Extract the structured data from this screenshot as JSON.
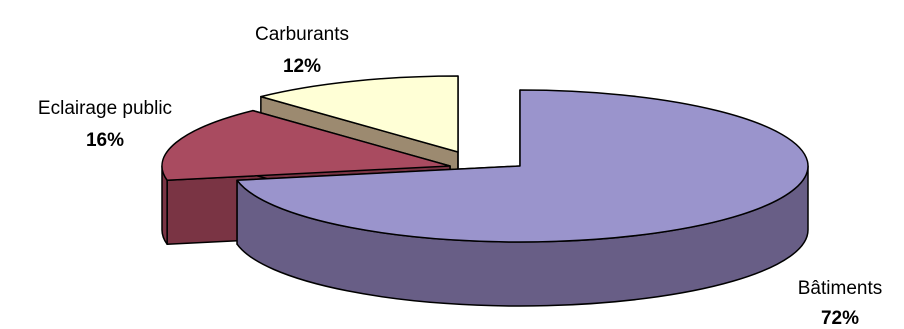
{
  "chart_data": {
    "type": "pie",
    "style": "3d-exploded",
    "categories": [
      "Bâtiments",
      "Eclairage public",
      "Carburants"
    ],
    "values": [
      72,
      16,
      12
    ],
    "labels": [
      {
        "name": "Bâtiments",
        "value": "72%"
      },
      {
        "name": "Eclairage public",
        "value": "16%"
      },
      {
        "name": "Carburants",
        "value": "12%"
      }
    ],
    "colors": {
      "Bâtiments": {
        "top": "#9a94cc",
        "side": "#685e86"
      },
      "Eclairage public": {
        "top": "#a94b60",
        "side": "#7a3444"
      },
      "Carburants": {
        "top": "#ffffd6",
        "side": "#9c8a70"
      }
    },
    "legend": "none"
  }
}
